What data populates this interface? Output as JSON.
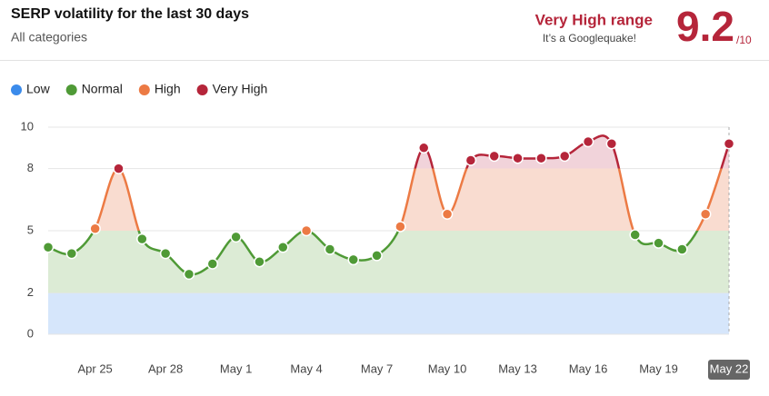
{
  "chart_data": {
    "type": "line",
    "title": "SERP volatility for the last 30 days",
    "subtitle": "All categories",
    "range_label": "Very High range",
    "range_note": "It’s a Googlequake!",
    "score": 9.2,
    "score_max": "/10",
    "categories": [
      null,
      null,
      "Apr 25",
      null,
      null,
      "Apr 28",
      null,
      null,
      "May 1",
      null,
      null,
      "May 4",
      null,
      null,
      "May 7",
      null,
      null,
      "May 10",
      null,
      null,
      "May 13",
      null,
      null,
      "May 16",
      null,
      null,
      "May 19",
      null,
      null,
      "May 22"
    ],
    "series": [
      {
        "name": "SERP volatility",
        "values": [
          4.2,
          3.9,
          5.1,
          8.0,
          4.6,
          3.9,
          2.9,
          3.4,
          4.7,
          3.5,
          4.2,
          5.0,
          4.1,
          3.6,
          3.8,
          5.2,
          9.0,
          5.8,
          8.4,
          8.6,
          8.5,
          8.5,
          8.6,
          9.3,
          9.2,
          4.8,
          4.4,
          4.1,
          5.8,
          9.2
        ]
      }
    ],
    "levels": [
      {
        "name": "Low",
        "color": "#3b8beb",
        "fill": "#d6e6fb",
        "range": [
          0,
          2
        ]
      },
      {
        "name": "Normal",
        "color": "#4f9a36",
        "fill": "#dcebd5",
        "range": [
          2,
          5
        ]
      },
      {
        "name": "High",
        "color": "#ec7a44",
        "fill": "#f9dcd0",
        "range": [
          5,
          8
        ]
      },
      {
        "name": "Very High",
        "color": "#b5253a",
        "fill": "#f1d3da",
        "range": [
          8,
          10
        ]
      }
    ],
    "ylim": [
      0,
      10
    ],
    "yticks": [
      0,
      2,
      5,
      8,
      10
    ],
    "grid": true
  }
}
